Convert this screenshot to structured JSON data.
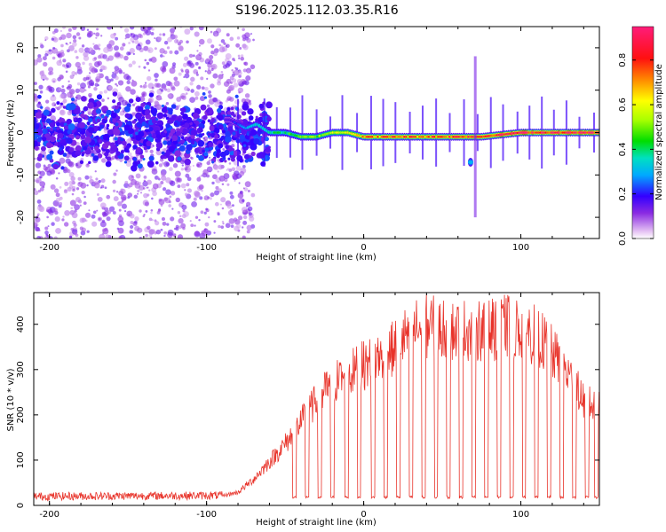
{
  "figure": {
    "title": "S196.2025.112.03.35.R16"
  },
  "chart_data": [
    {
      "type": "heatmap",
      "xlabel": "Height of straight line (km)",
      "ylabel": "Frequency (Hz)",
      "xlim": [
        -210,
        150
      ],
      "ylim": [
        -25,
        25
      ],
      "x_ticks": [
        -200,
        -100,
        0,
        100
      ],
      "y_ticks": [
        -20,
        -10,
        0,
        10,
        20
      ],
      "grid": false,
      "colorbar": {
        "label": "Normalized spectral amplitude",
        "range": [
          0,
          0.95
        ],
        "ticks": [
          0.0,
          0.2,
          0.4,
          0.6,
          0.8
        ],
        "colormap": [
          "#e8c8f4",
          "#8a2be2",
          "#3300ff",
          "#00aaff",
          "#00e0c0",
          "#00dd00",
          "#aaff00",
          "#ffff00",
          "#ff8800",
          "#ff1010",
          "#ff1c7a"
        ]
      },
      "ridge": {
        "description_points_x": [
          -85,
          -75,
          -68,
          -60,
          -50,
          -40,
          -30,
          -20,
          -10,
          0,
          20,
          40,
          60,
          75,
          100,
          120,
          150
        ],
        "description_points_freq": [
          3,
          1,
          2,
          0,
          0,
          -1,
          -1,
          0,
          0,
          -1,
          -1,
          -1,
          -1,
          -1,
          0,
          0,
          0
        ],
        "peak_amplitude": [
          0.15,
          0.3,
          0.35,
          0.4,
          0.45,
          0.5,
          0.55,
          0.6,
          0.7,
          0.75,
          0.8,
          0.8,
          0.85,
          0.88,
          0.92,
          0.9,
          0.9
        ]
      },
      "side_feature": {
        "x": 68,
        "freq": -7,
        "amplitude": 0.3
      }
    },
    {
      "type": "line",
      "xlabel": "Height of straight line (km)",
      "ylabel": "SNR (10 * v/v)",
      "xlim": [
        -210,
        150
      ],
      "ylim": [
        0,
        470
      ],
      "x_ticks": [
        -200,
        -100,
        0,
        100
      ],
      "y_ticks": [
        0,
        100,
        200,
        300,
        400
      ],
      "grid": false,
      "series": [
        {
          "color": "#e8332a",
          "envelope_x": [
            -210,
            -90,
            -80,
            -70,
            -60,
            -50,
            -40,
            -30,
            -20,
            -10,
            0,
            10,
            20,
            30,
            40,
            50,
            60,
            70,
            80,
            90,
            100,
            110,
            120,
            130,
            140,
            150
          ],
          "envelope_y": [
            20,
            22,
            30,
            60,
            100,
            140,
            190,
            240,
            280,
            300,
            320,
            340,
            360,
            400,
            410,
            405,
            400,
            405,
            400,
            410,
            405,
            390,
            350,
            300,
            240,
            220
          ],
          "dip_x": [
            -44,
            -36,
            -28,
            -20,
            -11,
            -3,
            6,
            14,
            22,
            30,
            38,
            46,
            54,
            62,
            70,
            78,
            86,
            94,
            102,
            110,
            118,
            126,
            134,
            142,
            148
          ],
          "dip_value": 15
        }
      ]
    }
  ]
}
